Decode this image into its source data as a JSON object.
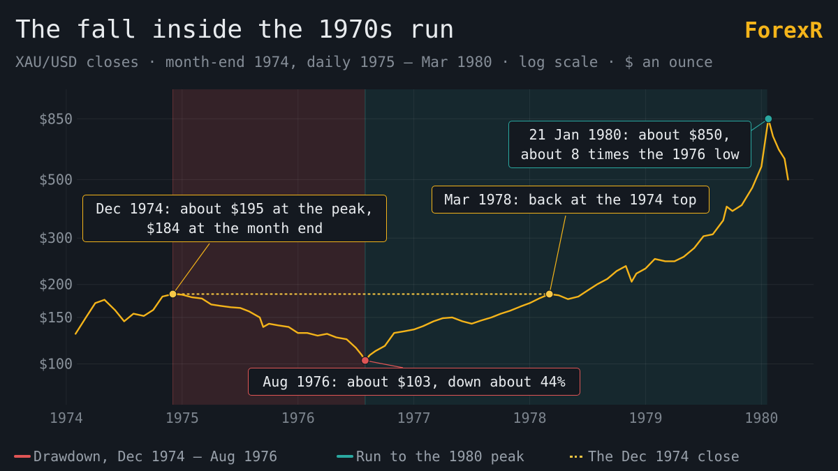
{
  "header": {
    "title": "The fall inside the 1970s run",
    "subtitle": "XAU/USD closes · month-end 1974, daily 1975 – Mar 1980 · log scale · $ an ounce",
    "brand": "ForexR"
  },
  "colors": {
    "background": "#141920",
    "line": "#f4b41a",
    "drawdown_band": "#e05555",
    "run_band": "#2aa8a0",
    "reference_line": "#f4c542",
    "trough_marker": "#e05555",
    "peak_marker": "#2aa8a0"
  },
  "legend": {
    "drawdown": "Drawdown, Dec 1974 – Aug 1976",
    "run": "Run to the 1980 peak",
    "reference": "The Dec 1974 close"
  },
  "callouts": {
    "dec1974_line1": "Dec 1974: about $195 at the peak,",
    "dec1974_line2": "$184 at the month end",
    "aug1976": "Aug 1976: about $103, down about 44%",
    "mar1978": "Mar 1978: back at the 1974 top",
    "jan1980_line1": "21 Jan 1980: about $850,",
    "jan1980_line2": "about 8 times the 1976 low"
  },
  "chart_data": {
    "type": "line",
    "y_scale": "log",
    "ylim": [
      70,
      1100
    ],
    "xlim": [
      1973.85,
      1980.45
    ],
    "y_ticks": [
      100,
      150,
      200,
      300,
      500,
      850
    ],
    "y_tick_labels": [
      "$100",
      "$150",
      "$200",
      "$300",
      "$500",
      "$850"
    ],
    "x_ticks": [
      1974,
      1975,
      1976,
      1977,
      1978,
      1979,
      1980
    ],
    "x_tick_labels": [
      "1974",
      "1975",
      "1976",
      "1977",
      "1978",
      "1979",
      "1980"
    ],
    "grid": true,
    "bands": [
      {
        "from": 1974.92,
        "to": 1976.58
      },
      {
        "from": 1976.58,
        "to": 1980.05
      }
    ],
    "reference_level": 184,
    "reference_from": 1974.92,
    "reference_to": 1978.17,
    "markers": [
      {
        "x": 1974.92,
        "y": 184
      },
      {
        "x": 1976.58,
        "y": 103
      },
      {
        "x": 1978.17,
        "y": 184
      },
      {
        "x": 1980.06,
        "y": 850
      }
    ],
    "series": [
      {
        "x": [
          1974.08,
          1974.17,
          1974.25,
          1974.33,
          1974.42,
          1974.5,
          1974.58,
          1974.67,
          1974.75,
          1974.83,
          1974.92,
          1975.0,
          1975.08,
          1975.17,
          1975.25,
          1975.33,
          1975.42,
          1975.5,
          1975.58,
          1975.67,
          1975.7,
          1975.75,
          1975.83,
          1975.92,
          1976.0,
          1976.08,
          1976.17,
          1976.25,
          1976.33,
          1976.42,
          1976.5,
          1976.55,
          1976.58,
          1976.62,
          1976.67,
          1976.75,
          1976.83,
          1976.92,
          1977.0,
          1977.08,
          1977.17,
          1977.25,
          1977.33,
          1977.42,
          1977.5,
          1977.58,
          1977.67,
          1977.75,
          1977.83,
          1977.92,
          1978.0,
          1978.08,
          1978.17,
          1978.25,
          1978.33,
          1978.42,
          1978.5,
          1978.58,
          1978.67,
          1978.75,
          1978.83,
          1978.88,
          1978.92,
          1979.0,
          1979.08,
          1979.17,
          1979.25,
          1979.33,
          1979.42,
          1979.5,
          1979.58,
          1979.67,
          1979.7,
          1979.75,
          1979.83,
          1979.92,
          1980.0,
          1980.03,
          1980.06,
          1980.1,
          1980.15,
          1980.2,
          1980.23
        ],
        "values": [
          130,
          150,
          170,
          175,
          160,
          145,
          155,
          152,
          160,
          180,
          184,
          183,
          179,
          177,
          168,
          166,
          164,
          163,
          158,
          150,
          138,
          142,
          140,
          138,
          131,
          131,
          128,
          130,
          126,
          124,
          115,
          108,
          103,
          108,
          112,
          117,
          131,
          133,
          135,
          139,
          145,
          149,
          150,
          145,
          142,
          146,
          150,
          155,
          159,
          165,
          170,
          177,
          184,
          182,
          176,
          180,
          190,
          200,
          210,
          225,
          235,
          205,
          220,
          230,
          250,
          245,
          245,
          255,
          275,
          305,
          310,
          350,
          395,
          380,
          400,
          465,
          560,
          690,
          850,
          730,
          650,
          600,
          500
        ]
      }
    ]
  }
}
